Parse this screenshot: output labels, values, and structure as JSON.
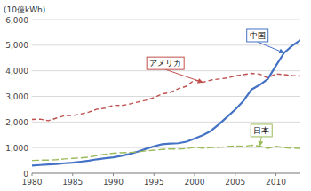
{
  "chart_data": {
    "type": "line",
    "y_label": "(10億kWh)",
    "x": [
      1980,
      1981,
      1982,
      1983,
      1984,
      1985,
      1986,
      1987,
      1988,
      1989,
      1990,
      1991,
      1992,
      1993,
      1994,
      1995,
      1996,
      1997,
      1998,
      1999,
      2000,
      2001,
      2002,
      2003,
      2004,
      2005,
      2006,
      2007,
      2008,
      2009,
      2010,
      2011,
      2012,
      2013
    ],
    "series": [
      {
        "name": "中国",
        "color": "#4472C4",
        "line_style": "solid",
        "values": [
          300,
          320,
          340,
          360,
          390,
          410,
          450,
          490,
          545,
          585,
          620,
          680,
          750,
          840,
          950,
          1050,
          1130,
          1160,
          1170,
          1230,
          1350,
          1480,
          1650,
          1910,
          2200,
          2490,
          2820,
          3270,
          3450,
          3680,
          4200,
          4700,
          4980,
          5200
        ]
      },
      {
        "name": "アメリカ",
        "color": "#C0504D",
        "line_style": "dashed",
        "values": [
          2100,
          2110,
          2050,
          2150,
          2250,
          2250,
          2310,
          2390,
          2500,
          2540,
          2650,
          2640,
          2700,
          2780,
          2850,
          2950,
          3100,
          3150,
          3300,
          3400,
          3650,
          3550,
          3640,
          3680,
          3720,
          3800,
          3850,
          3900,
          3870,
          3720,
          3880,
          3850,
          3820,
          3800
        ]
      },
      {
        "name": "日本",
        "color": "#9BBB59",
        "line_style": "dashed",
        "values": [
          500,
          510,
          510,
          530,
          560,
          580,
          600,
          630,
          690,
          740,
          780,
          800,
          810,
          830,
          870,
          900,
          930,
          950,
          940,
          960,
          1010,
          980,
          1000,
          1010,
          1040,
          1060,
          1050,
          1090,
          1060,
          970,
          1050,
          1000,
          980,
          970
        ]
      }
    ],
    "xlim": [
      1980,
      2013
    ],
    "xticks": [
      1980,
      1985,
      1990,
      1995,
      2000,
      2005,
      2010
    ],
    "ylim": [
      0,
      6000
    ],
    "yticks": [
      0,
      {
        "value": 1000,
        "label": "1,000"
      },
      {
        "value": 2000,
        "label": "2,000"
      },
      {
        "value": 3000,
        "label": "3,000"
      },
      {
        "value": 4000,
        "label": "4,000"
      },
      {
        "value": 5000,
        "label": "5,000"
      },
      {
        "value": 6000,
        "label": "6,000"
      }
    ],
    "grid": true
  }
}
